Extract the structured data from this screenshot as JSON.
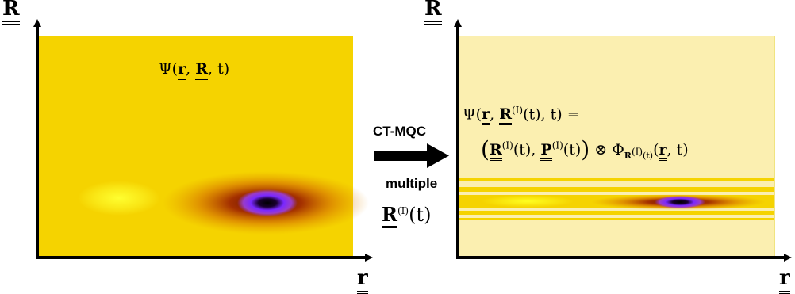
{
  "left_panel": {
    "y_axis_label": "R",
    "x_axis_label": "r",
    "formula": {
      "prefix": "Ψ(",
      "r": "r",
      "sep1": ", ",
      "R": "R",
      "suffix": ", t)"
    }
  },
  "arrow": {
    "top_label": "CT-MQC",
    "bottom_label": "multiple",
    "traj": {
      "R": "R",
      "sup": "(I)",
      "suffix": "(t)"
    }
  },
  "right_panel": {
    "y_axis_label": "R",
    "x_axis_label": "r",
    "formula_line1": {
      "prefix": "Ψ(",
      "r": "r",
      "sep1": ", ",
      "R": "R",
      "sup": "(I)",
      "suffix": "(t), t) ="
    },
    "formula_line2": {
      "open": "(",
      "R": "R",
      "sup1": "(I)",
      "mid": "(t), ",
      "P": "P",
      "sup2": "(I)",
      "close_inner": "(t)",
      "close": ")",
      "otimes": " ⊗ Φ",
      "sub_R": "R",
      "sub_sup": "(I)",
      "sub_t": "(t)",
      "arg_open": "(",
      "r": "r",
      "arg_close": ", t)"
    }
  },
  "colors": {
    "background_left": "#f5d300",
    "background_right": "#fbefb0",
    "peak_core": "#000000",
    "peak_ring": "#8a2be2",
    "lobe": "#ffff20"
  }
}
